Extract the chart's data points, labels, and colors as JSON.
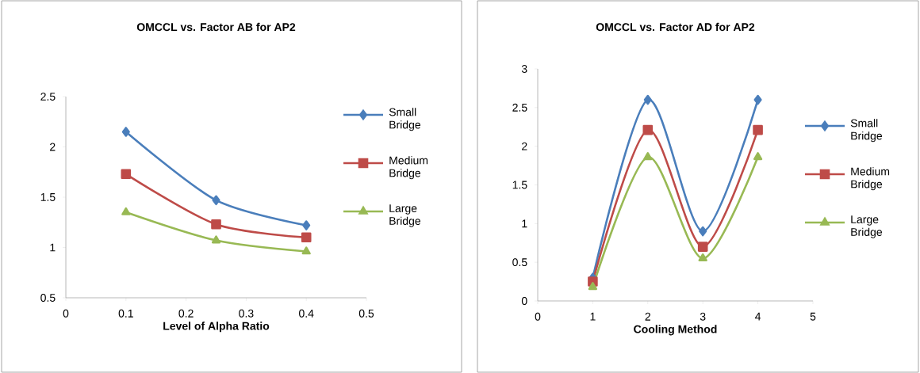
{
  "chart_data": [
    {
      "type": "line",
      "title": "OMCCL vs. Factor AB for AP2",
      "xlabel": "Level of Alpha Ratio",
      "x": [
        0.1,
        0.25,
        0.4
      ],
      "xlim": [
        0,
        0.5
      ],
      "xticks": [
        0,
        0.1,
        0.2,
        0.3,
        0.4,
        0.5
      ],
      "ylim": [
        0.5,
        2.5
      ],
      "yticks": [
        0.5,
        1,
        1.5,
        2,
        2.5
      ],
      "legend": "right",
      "grid": false,
      "series": [
        {
          "name": "Small Bridge",
          "color": "#4a7ebb",
          "marker": "diamond",
          "values": [
            2.15,
            1.47,
            1.22
          ]
        },
        {
          "name": "Medium Bridge",
          "color": "#be4b48",
          "marker": "square",
          "values": [
            1.73,
            1.23,
            1.1
          ]
        },
        {
          "name": "Large Bridge",
          "color": "#98b954",
          "marker": "triangle",
          "values": [
            1.35,
            1.07,
            0.96
          ]
        }
      ]
    },
    {
      "type": "line",
      "title": "OMCCL vs. Factor AD for AP2",
      "xlabel": "Cooling Method",
      "x": [
        1,
        2,
        3,
        4
      ],
      "xlim": [
        0,
        5
      ],
      "xticks": [
        0,
        1,
        2,
        3,
        4,
        5
      ],
      "ylim": [
        0,
        3
      ],
      "yticks": [
        0,
        0.5,
        1,
        1.5,
        2,
        2.5,
        3
      ],
      "legend": "right",
      "grid": false,
      "series": [
        {
          "name": "Small Bridge",
          "color": "#4a7ebb",
          "marker": "diamond",
          "values": [
            0.3,
            2.6,
            0.9,
            2.6
          ]
        },
        {
          "name": "Medium Bridge",
          "color": "#be4b48",
          "marker": "square",
          "values": [
            0.25,
            2.21,
            0.7,
            2.21
          ]
        },
        {
          "name": "Large Bridge",
          "color": "#98b954",
          "marker": "triangle",
          "values": [
            0.18,
            1.86,
            0.55,
            1.86
          ]
        }
      ]
    }
  ]
}
